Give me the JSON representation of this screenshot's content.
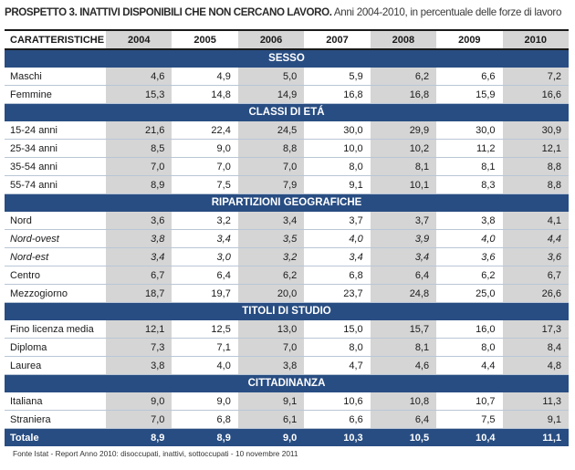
{
  "title_bold": "PROSPETTO 3. INATTIVI DISPONIBILI CHE NON CERCANO LAVORO.",
  "title_rest": " Anni 2004-2010, in percentuale delle forze di lavoro",
  "header": {
    "label": "CARATTERISTICHE",
    "years": [
      "2004",
      "2005",
      "2006",
      "2007",
      "2008",
      "2009",
      "2010"
    ]
  },
  "sections": [
    {
      "title": "SESSO",
      "rows": [
        {
          "label": "Maschi",
          "values": [
            "4,6",
            "4,9",
            "5,0",
            "5,9",
            "6,2",
            "6,6",
            "7,2"
          ]
        },
        {
          "label": "Femmine",
          "values": [
            "15,3",
            "14,8",
            "14,9",
            "16,8",
            "16,8",
            "15,9",
            "16,6"
          ]
        }
      ]
    },
    {
      "title": "CLASSI DI ETÁ",
      "rows": [
        {
          "label": "15-24 anni",
          "values": [
            "21,6",
            "22,4",
            "24,5",
            "30,0",
            "29,9",
            "30,0",
            "30,9"
          ]
        },
        {
          "label": "25-34 anni",
          "values": [
            "8,5",
            "9,0",
            "8,8",
            "10,0",
            "10,2",
            "11,2",
            "12,1"
          ]
        },
        {
          "label": "35-54 anni",
          "values": [
            "7,0",
            "7,0",
            "7,0",
            "8,0",
            "8,1",
            "8,1",
            "8,8"
          ]
        },
        {
          "label": "55-74 anni",
          "values": [
            "8,9",
            "7,5",
            "7,9",
            "9,1",
            "10,1",
            "8,3",
            "8,8"
          ]
        }
      ]
    },
    {
      "title": "RIPARTIZIONI GEOGRAFICHE",
      "rows": [
        {
          "label": "Nord",
          "values": [
            "3,6",
            "3,2",
            "3,4",
            "3,7",
            "3,7",
            "3,8",
            "4,1"
          ]
        },
        {
          "label": "Nord-ovest",
          "italic": true,
          "values": [
            "3,8",
            "3,4",
            "3,5",
            "4,0",
            "3,9",
            "4,0",
            "4,4"
          ]
        },
        {
          "label": "Nord-est",
          "italic": true,
          "values": [
            "3,4",
            "3,0",
            "3,2",
            "3,4",
            "3,4",
            "3,6",
            "3,6"
          ]
        },
        {
          "label": "Centro",
          "values": [
            "6,7",
            "6,4",
            "6,2",
            "6,8",
            "6,4",
            "6,2",
            "6,7"
          ]
        },
        {
          "label": "Mezzogiorno",
          "values": [
            "18,7",
            "19,7",
            "20,0",
            "23,7",
            "24,8",
            "25,0",
            "26,6"
          ]
        }
      ]
    },
    {
      "title": "TITOLI DI STUDIO",
      "rows": [
        {
          "label": "Fino licenza media",
          "values": [
            "12,1",
            "12,5",
            "13,0",
            "15,0",
            "15,7",
            "16,0",
            "17,3"
          ]
        },
        {
          "label": "Diploma",
          "values": [
            "7,3",
            "7,1",
            "7,0",
            "8,0",
            "8,1",
            "8,0",
            "8,4"
          ]
        },
        {
          "label": "Laurea",
          "values": [
            "3,8",
            "4,0",
            "3,8",
            "4,7",
            "4,6",
            "4,4",
            "4,8"
          ]
        }
      ]
    },
    {
      "title": "CITTADINANZA",
      "rows": [
        {
          "label": "Italiana",
          "values": [
            "9,0",
            "9,0",
            "9,1",
            "10,6",
            "10,8",
            "10,7",
            "11,3"
          ]
        },
        {
          "label": "Straniera",
          "values": [
            "7,0",
            "6,8",
            "6,1",
            "6,6",
            "6,4",
            "7,5",
            "9,1"
          ]
        }
      ]
    }
  ],
  "total": {
    "label": "Totale",
    "values": [
      "8,9",
      "8,9",
      "9,0",
      "10,3",
      "10,5",
      "10,4",
      "11,1"
    ]
  },
  "footer": "Fonte Istat - Report  Anno 2010: disoccupati, inattivi, sottoccupati - 10 novembre 2011"
}
